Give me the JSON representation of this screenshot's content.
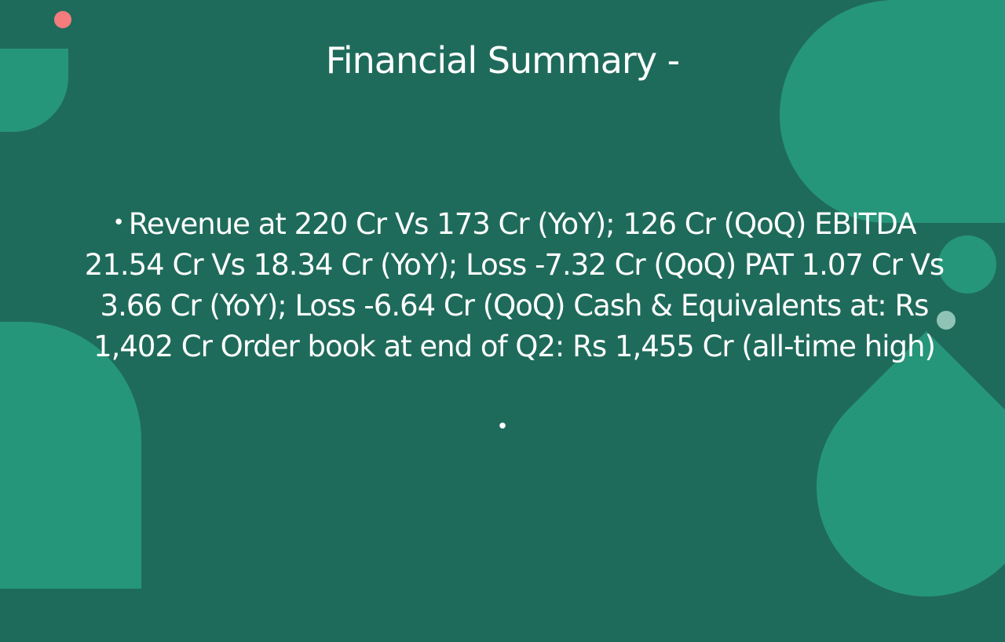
{
  "slide": {
    "title": "Financial Summary -",
    "bullets": [
      "Revenue at 220 Cr Vs 173 Cr (YoY); 126 Cr (QoQ) EBITDA 21.54 Cr Vs 18.34 Cr (YoY); Loss -7.32 Cr (QoQ) PAT 1.07 Cr Vs 3.66 Cr (YoY); Loss -6.64 Cr (QoQ)  Cash & Equivalents at: Rs 1,402 Cr Order book at end of Q2: Rs 1,455 Cr (all-time high)",
      ""
    ],
    "bullet_glyph": "•"
  },
  "colors": {
    "background": "#1f6b5b",
    "shape": "#26967a",
    "accent_dot": "#f47c7c",
    "text": "#ffffff"
  }
}
